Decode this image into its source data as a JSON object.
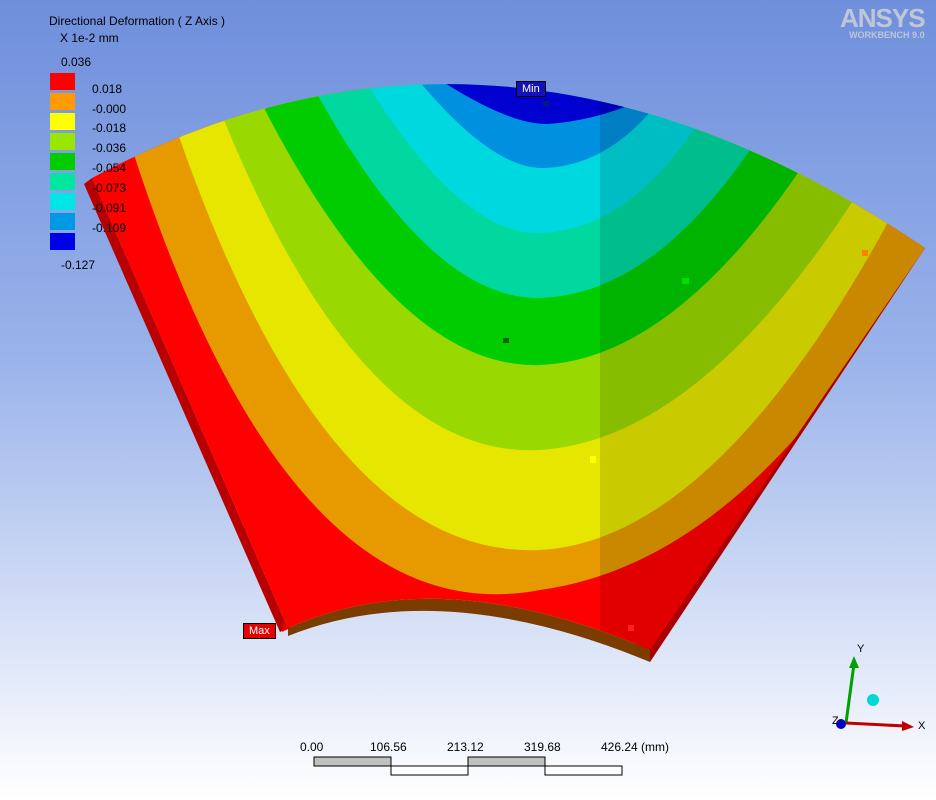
{
  "result": {
    "title": "Directional Deformation ( Z Axis )",
    "units": "X 1e-2 mm",
    "max_label": "0.036",
    "min_label": "-0.127"
  },
  "legend": {
    "ticks": [
      "0.018",
      "-0.000",
      "-0.018",
      "-0.036",
      "-0.054",
      "-0.073",
      "-0.091",
      "-0.109"
    ],
    "colors": [
      "#ff0000",
      "#ff9a00",
      "#ffff00",
      "#99e600",
      "#00cc00",
      "#00e6a0",
      "#00e6e6",
      "#0099e6",
      "#0000e6"
    ]
  },
  "markers": {
    "min": "Min",
    "max": "Max"
  },
  "logo": {
    "name": "ANSYS",
    "product": "WORKBENCH 9.0"
  },
  "scale_bar": {
    "ticks": [
      "0.00",
      "106.56",
      "213.12",
      "319.68",
      "426.24 (mm)"
    ]
  },
  "triad": {
    "x": "X",
    "y": "Y",
    "z": "Z"
  }
}
